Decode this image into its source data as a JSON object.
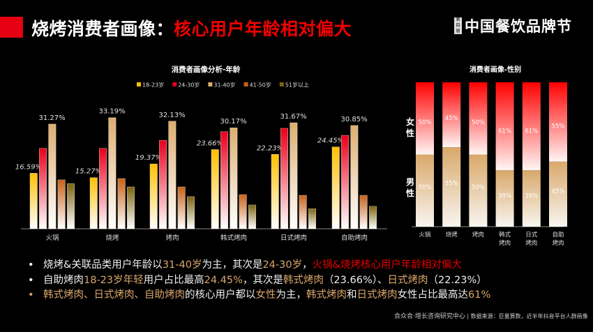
{
  "header": {
    "title_main": "烧烤消费者画像：",
    "title_highlight": "核心用户年龄相对偏大",
    "logo_badge": "第四届",
    "logo_text": "中国餐饮品牌节"
  },
  "chart_data": [
    {
      "type": "bar",
      "title": "消费者画像分析-年龄",
      "categories": [
        "火锅",
        "烧烤",
        "烤肉",
        "韩式烤肉",
        "日式烤肉",
        "自助烤肉"
      ],
      "series": [
        {
          "name": "18-23岁",
          "color": "#FFC000",
          "values": [
            16.59,
            15.27,
            19.37,
            23.66,
            22.23,
            24.45
          ],
          "labeled": true
        },
        {
          "name": "24-30岁",
          "color": "#E8001C",
          "values": [
            24.0,
            24.0,
            26.4,
            29.0,
            30.0,
            27.9
          ],
          "labeled": false
        },
        {
          "name": "31-40岁",
          "color": "#DDAE70",
          "values": [
            31.27,
            33.19,
            32.13,
            30.17,
            31.67,
            30.85
          ],
          "labeled": true
        },
        {
          "name": "41-50岁",
          "color": "#C8621A",
          "values": [
            14.6,
            15.0,
            12.5,
            10.2,
            10.0,
            10.0
          ],
          "labeled": false
        },
        {
          "name": "51岁以上",
          "color": "#7A6410",
          "values": [
            13.5,
            12.5,
            9.6,
            7.1,
            6.0,
            6.7
          ],
          "labeled": false
        }
      ],
      "data_labels": [
        [
          "16.59%",
          "",
          "31.27%",
          "",
          ""
        ],
        [
          "15.27%",
          "",
          "33.19%",
          "",
          ""
        ],
        [
          "19.37%",
          "",
          "32.13%",
          "",
          ""
        ],
        [
          "23.66%",
          "",
          "30.17%",
          "",
          ""
        ],
        [
          "22.23%",
          "",
          "31.67%",
          "",
          ""
        ],
        [
          "24.45%",
          "",
          "30.85%",
          "",
          ""
        ]
      ],
      "ylim": [
        0,
        35
      ],
      "grid": false,
      "legend": "top"
    },
    {
      "type": "bar",
      "stacked": true,
      "title": "消费者画像-性别",
      "categories": [
        [
          "火锅"
        ],
        [
          "烧烤"
        ],
        [
          "烤肉"
        ],
        [
          "韩式",
          "烤肉"
        ],
        [
          "日式",
          "烤肉"
        ],
        [
          "自助",
          "烤肉"
        ]
      ],
      "series": [
        {
          "name": "男性",
          "color": "#D9A86A",
          "values": [
            50,
            55,
            50,
            39,
            39,
            45
          ],
          "labels": [
            "50%",
            "55%",
            "50%",
            "39%",
            "39%",
            "45%"
          ]
        },
        {
          "name": "女性",
          "color": "#FF0000",
          "values": [
            50,
            45,
            50,
            61,
            61,
            55
          ],
          "labels": [
            "50%",
            "45%",
            "50%",
            "61%",
            "61%",
            "55%"
          ]
        }
      ],
      "series_axis_labels": {
        "female": "女性",
        "male": "男性"
      },
      "ylim": [
        0,
        100
      ],
      "grid": false
    }
  ],
  "bullets": [
    [
      {
        "t": "烧烤&关联品类用户年龄以",
        "c": "w"
      },
      {
        "t": "31-40岁",
        "c": "g"
      },
      {
        "t": "为主，其次是",
        "c": "w"
      },
      {
        "t": "24-30岁",
        "c": "g"
      },
      {
        "t": "，",
        "c": "w"
      },
      {
        "t": "火锅&烧烤核心用户年龄相对偏大",
        "c": "r"
      }
    ],
    [
      {
        "t": "自助烤肉",
        "c": "w"
      },
      {
        "t": "18-23岁年轻",
        "c": "g"
      },
      {
        "t": "用户占比最高",
        "c": "w"
      },
      {
        "t": "24.45%",
        "c": "g"
      },
      {
        "t": "，其次是",
        "c": "w"
      },
      {
        "t": "韩式烤肉",
        "c": "g"
      },
      {
        "t": "（23.66%）、",
        "c": "w"
      },
      {
        "t": "日式烤肉",
        "c": "g"
      },
      {
        "t": "（22.23%）",
        "c": "w"
      }
    ],
    [
      {
        "t": "韩式烤肉、日式烤肉、自助烤肉",
        "c": "g"
      },
      {
        "t": "的核心用户都以",
        "c": "w"
      },
      {
        "t": "女性",
        "c": "g"
      },
      {
        "t": "为主，",
        "c": "w"
      },
      {
        "t": "韩式烤肉",
        "c": "g"
      },
      {
        "t": "和",
        "c": "w"
      },
      {
        "t": "日式烤肉",
        "c": "g"
      },
      {
        "t": "女性占比最高达",
        "c": "w"
      },
      {
        "t": "61%",
        "c": "g"
      }
    ]
  ],
  "bullet_colors": [
    "#ffffff",
    "#ffffff",
    "#D9A66A"
  ],
  "bullet_symbol": "•",
  "footer": {
    "org": "合众合·增长咨询研究中心",
    "source": "| 数据来源：巨量算数，近半年抖音平台人群画像"
  }
}
